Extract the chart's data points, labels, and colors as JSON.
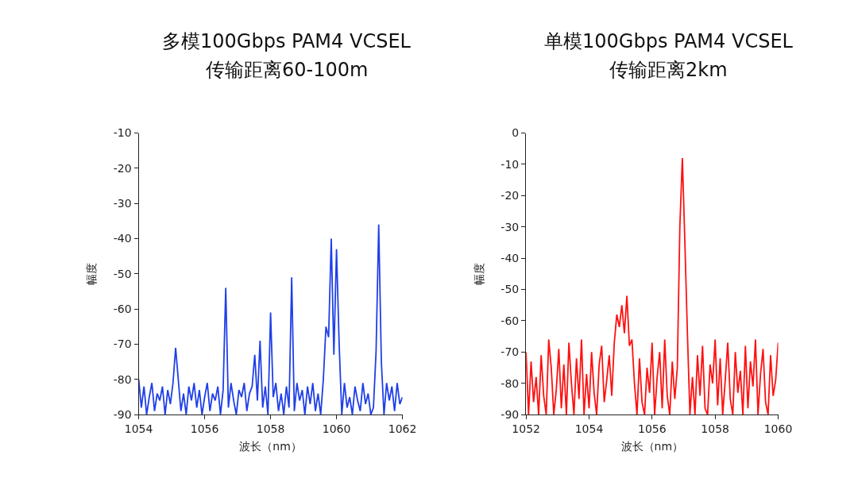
{
  "chart_data": [
    {
      "type": "line",
      "title": "多模100Gbps PAM4 VCSEL",
      "subtitle": "传输距离60-100m",
      "xlabel": "波长（nm）",
      "ylabel": "幅度",
      "x": [
        1054,
        1054.08,
        1054.16,
        1054.24,
        1054.32,
        1054.4,
        1054.48,
        1054.56,
        1054.64,
        1054.72,
        1054.8,
        1054.88,
        1054.96,
        1055.04,
        1055.12,
        1055.2,
        1055.28,
        1055.36,
        1055.44,
        1055.52,
        1055.6,
        1055.68,
        1055.76,
        1055.84,
        1055.92,
        1056,
        1056.08,
        1056.16,
        1056.24,
        1056.32,
        1056.4,
        1056.48,
        1056.56,
        1056.64,
        1056.72,
        1056.8,
        1056.88,
        1056.96,
        1057.04,
        1057.12,
        1057.2,
        1057.28,
        1057.36,
        1057.44,
        1057.52,
        1057.6,
        1057.68,
        1057.76,
        1057.84,
        1057.92,
        1058,
        1058.08,
        1058.16,
        1058.24,
        1058.32,
        1058.4,
        1058.48,
        1058.56,
        1058.64,
        1058.72,
        1058.8,
        1058.88,
        1058.96,
        1059.04,
        1059.12,
        1059.2,
        1059.28,
        1059.36,
        1059.44,
        1059.52,
        1059.6,
        1059.68,
        1059.76,
        1059.84,
        1059.92,
        1060,
        1060.08,
        1060.16,
        1060.24,
        1060.32,
        1060.4,
        1060.48,
        1060.56,
        1060.64,
        1060.72,
        1060.8,
        1060.88,
        1060.96,
        1061.04,
        1061.12,
        1061.2,
        1061.28,
        1061.36,
        1061.44,
        1061.52,
        1061.6,
        1061.68,
        1061.76,
        1061.84,
        1061.92,
        1062
      ],
      "series": [
        {
          "color": "#1f3fe8",
          "values": [
            -80,
            -88,
            -82,
            -90,
            -85,
            -81,
            -89,
            -84,
            -86,
            -82,
            -90,
            -83,
            -87,
            -81,
            -71,
            -80,
            -89,
            -84,
            -90,
            -82,
            -86,
            -81,
            -88,
            -83,
            -90,
            -85,
            -81,
            -89,
            -84,
            -86,
            -82,
            -90,
            -83,
            -54,
            -88,
            -81,
            -86,
            -90,
            -83,
            -85,
            -81,
            -89,
            -84,
            -82,
            -73,
            -86,
            -69,
            -88,
            -82,
            -90,
            -61,
            -85,
            -81,
            -89,
            -84,
            -90,
            -82,
            -88,
            -51,
            -89,
            -81,
            -86,
            -83,
            -90,
            -82,
            -87,
            -81,
            -89,
            -84,
            -90,
            -80,
            -65,
            -68,
            -40,
            -73,
            -43,
            -70,
            -90,
            -81,
            -88,
            -85,
            -90,
            -82,
            -86,
            -89,
            -81,
            -87,
            -84,
            -90,
            -88,
            -72,
            -36,
            -75,
            -90,
            -81,
            -86,
            -82,
            -89,
            -81,
            -87,
            -85
          ]
        }
      ],
      "xlim": [
        1054,
        1062
      ],
      "xticks": [
        1054,
        1056,
        1058,
        1060,
        1062
      ],
      "ylim": [
        -90,
        -10
      ],
      "yticks": [
        -90,
        -80,
        -70,
        -60,
        -50,
        -40,
        -30,
        -20,
        -10
      ],
      "marker": "none",
      "line_style": "solid"
    },
    {
      "type": "line",
      "title": "单模100Gbps PAM4 VCSEL",
      "subtitle": "传输距离2km",
      "xlabel": "波长（nm）",
      "ylabel": "幅度",
      "x": [
        1052,
        1052.08,
        1052.16,
        1052.24,
        1052.32,
        1052.4,
        1052.48,
        1052.56,
        1052.64,
        1052.72,
        1052.8,
        1052.88,
        1052.96,
        1053.04,
        1053.12,
        1053.2,
        1053.28,
        1053.36,
        1053.44,
        1053.52,
        1053.6,
        1053.68,
        1053.76,
        1053.84,
        1053.92,
        1054,
        1054.08,
        1054.16,
        1054.24,
        1054.32,
        1054.4,
        1054.48,
        1054.56,
        1054.64,
        1054.72,
        1054.8,
        1054.88,
        1054.96,
        1055.04,
        1055.12,
        1055.2,
        1055.28,
        1055.36,
        1055.44,
        1055.52,
        1055.6,
        1055.68,
        1055.76,
        1055.84,
        1055.92,
        1056,
        1056.08,
        1056.16,
        1056.24,
        1056.32,
        1056.4,
        1056.48,
        1056.56,
        1056.64,
        1056.72,
        1056.8,
        1056.88,
        1056.96,
        1057.04,
        1057.12,
        1057.2,
        1057.28,
        1057.36,
        1057.44,
        1057.52,
        1057.6,
        1057.68,
        1057.76,
        1057.84,
        1057.92,
        1058,
        1058.08,
        1058.16,
        1058.24,
        1058.32,
        1058.4,
        1058.48,
        1058.56,
        1058.64,
        1058.72,
        1058.8,
        1058.88,
        1058.96,
        1059.04,
        1059.12,
        1059.2,
        1059.28,
        1059.36,
        1059.44,
        1059.52,
        1059.6,
        1059.68,
        1059.76,
        1059.84,
        1059.92,
        1060
      ],
      "series": [
        {
          "color": "#ff1010",
          "values": [
            -70,
            -90,
            -73,
            -86,
            -78,
            -90,
            -71,
            -84,
            -90,
            -66,
            -75,
            -90,
            -82,
            -69,
            -88,
            -74,
            -90,
            -67,
            -80,
            -90,
            -72,
            -85,
            -66,
            -90,
            -77,
            -88,
            -70,
            -83,
            -90,
            -74,
            -68,
            -86,
            -79,
            -71,
            -84,
            -67,
            -58,
            -62,
            -55,
            -64,
            -52,
            -68,
            -66,
            -80,
            -90,
            -72,
            -86,
            -90,
            -75,
            -83,
            -67,
            -90,
            -78,
            -70,
            -88,
            -66,
            -84,
            -90,
            -73,
            -85,
            -75,
            -30,
            -8,
            -35,
            -64,
            -90,
            -78,
            -90,
            -71,
            -84,
            -68,
            -88,
            -90,
            -74,
            -80,
            -66,
            -87,
            -72,
            -90,
            -79,
            -67,
            -85,
            -90,
            -70,
            -83,
            -76,
            -90,
            -68,
            -88,
            -73,
            -81,
            -66,
            -90,
            -77,
            -69,
            -86,
            -90,
            -71,
            -84,
            -79,
            -67
          ]
        }
      ],
      "xlim": [
        1052,
        1060
      ],
      "xticks": [
        1052,
        1054,
        1056,
        1058,
        1060
      ],
      "ylim": [
        -90,
        0
      ],
      "yticks": [
        -90,
        -80,
        -70,
        -60,
        -50,
        -40,
        -30,
        -20,
        -10,
        0
      ],
      "marker": "none",
      "line_style": "solid"
    }
  ]
}
